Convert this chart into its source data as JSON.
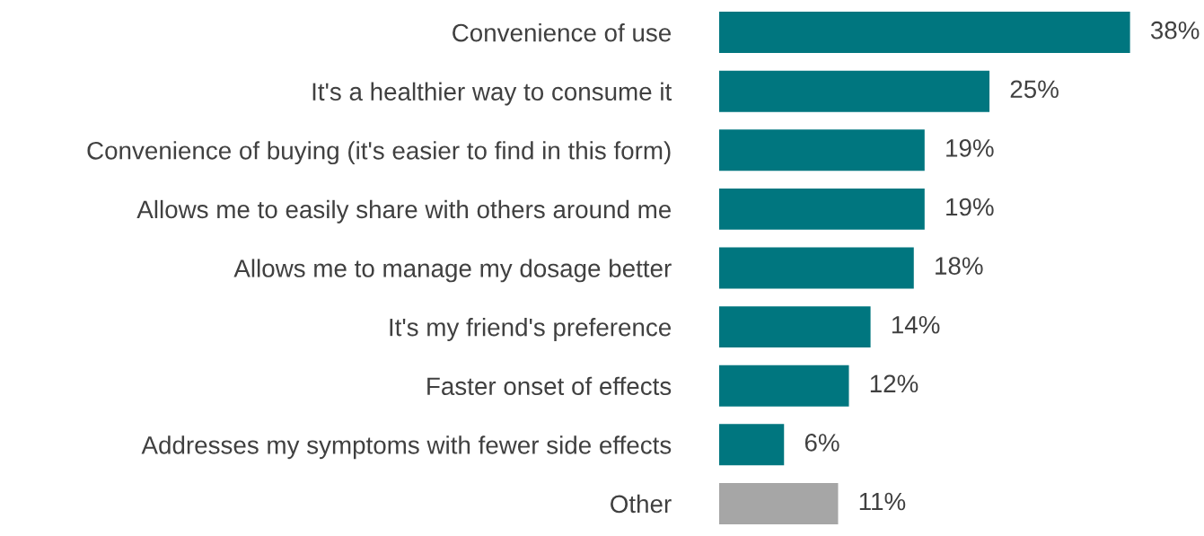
{
  "chart_data": {
    "type": "bar",
    "orientation": "horizontal",
    "categories": [
      "Convenience of use",
      "It's a healthier way to consume it",
      "Convenience of buying (it's easier to find in this form)",
      "Allows me to easily share with others around me",
      "Allows me to manage my dosage better",
      "It's my friend's preference",
      "Faster onset of effects",
      "Addresses my symptoms with fewer side effects",
      "Other"
    ],
    "values": [
      38,
      25,
      19,
      19,
      18,
      14,
      12,
      6,
      11
    ],
    "value_labels": [
      "38%",
      "25%",
      "19%",
      "19%",
      "18%",
      "14%",
      "12%",
      "6%",
      "11%"
    ],
    "colors": [
      "#00767f",
      "#00767f",
      "#00767f",
      "#00767f",
      "#00767f",
      "#00767f",
      "#00767f",
      "#00767f",
      "#a6a6a6"
    ],
    "grid": false,
    "legend": false
  }
}
